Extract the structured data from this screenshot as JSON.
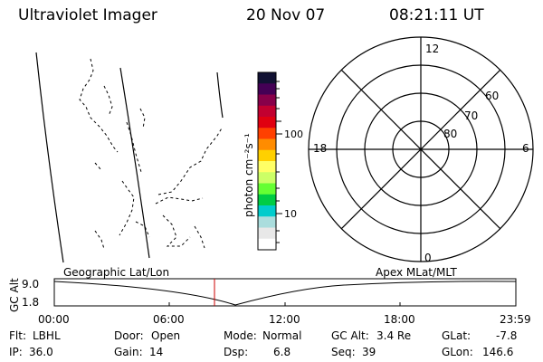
{
  "header": {
    "title": "Ultraviolet Imager",
    "date": "20 Nov 07",
    "time": "08:21:11 UT"
  },
  "colorbar": {
    "unit_label": "photon cm⁻²s⁻¹",
    "tick_labels": [
      "100",
      "10"
    ],
    "colors": [
      "#111133",
      "#440055",
      "#88004a",
      "#c20030",
      "#e00010",
      "#ff4000",
      "#ff8c00",
      "#ffd000",
      "#ffff66",
      "#ccff66",
      "#66ff33",
      "#00cc44",
      "#00cccc",
      "#aadddd",
      "#e8e8e8",
      "#ffffff"
    ]
  },
  "polar_plot": {
    "lat_labels": [
      "60",
      "70",
      "80"
    ],
    "mlt_labels": {
      "top": "12",
      "left": "18",
      "right": "6",
      "bottom": "0"
    }
  },
  "altitude_panel": {
    "axis_label": "GC Alt",
    "y_ticks": [
      "9.0",
      "1.8"
    ],
    "left_label": "Geographic Lat/Lon",
    "right_label": "Apex  MLat/MLT",
    "x_ticks": [
      "00:00",
      "06:00",
      "12:00",
      "18:00",
      "23:59"
    ]
  },
  "footer": {
    "row1": [
      {
        "label": "Flt:",
        "value": "LBHL"
      },
      {
        "label": "Door:",
        "value": "Open"
      },
      {
        "label": "Mode:",
        "value": "Normal"
      },
      {
        "label": "GC Alt:",
        "value": "3.4 Re"
      },
      {
        "label": "GLat:",
        "value": "-7.8"
      }
    ],
    "row2": [
      {
        "label": "IP:",
        "value": "36.0"
      },
      {
        "label": "Gain:",
        "value": "14"
      },
      {
        "label": "Dsp:",
        "value": "6.8"
      },
      {
        "label": "Seq:",
        "value": "39"
      },
      {
        "label": "GLon:",
        "value": "146.6"
      }
    ]
  }
}
